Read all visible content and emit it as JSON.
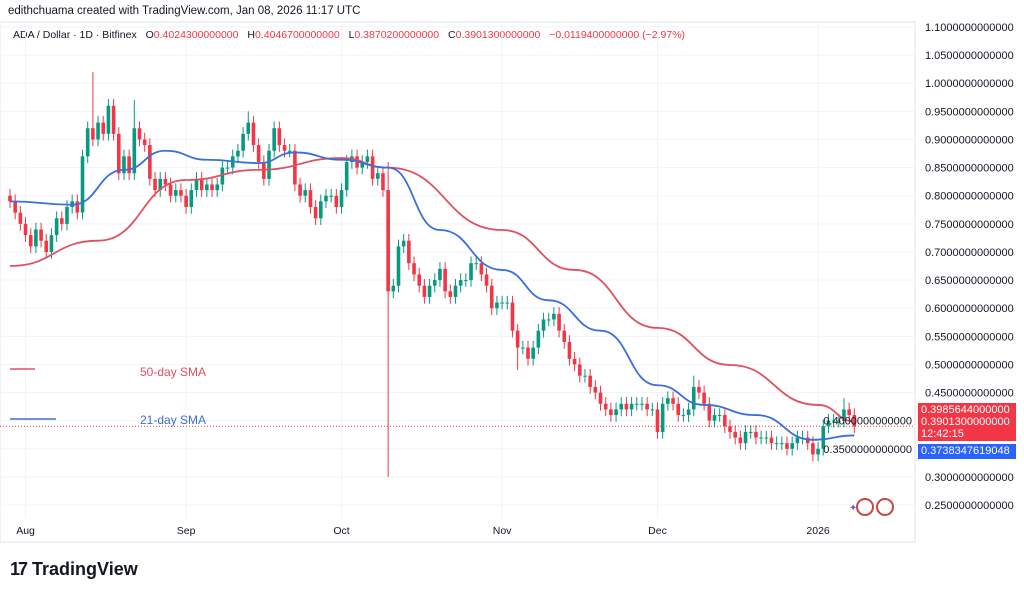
{
  "header": {
    "credit": "edithchuama created with TradingView.com, Jan 08, 2026 11:17 UTC"
  },
  "legend": {
    "symbol": "ADA / Dollar · 1D · Bitfinex",
    "o_label": "O",
    "o": "0.4024300000000",
    "h_label": "H",
    "h": "0.4046700000000",
    "l_label": "L",
    "l": "0.3870200000000",
    "c_label": "C",
    "c": "0.3901300000000",
    "change": "−0.0119400000000 (−2.97%)"
  },
  "annotations": {
    "sma50": "50-day SMA",
    "sma21": "21-day SMA"
  },
  "price_tags": {
    "sma50": "0.3985644000000",
    "last": "0.3901300000000",
    "countdown": "12:42:15",
    "sma21": "0.3738347619048"
  },
  "colors": {
    "up": "#089981",
    "down": "#f23645",
    "sma50": "#e05060",
    "sma21": "#3a6fd8",
    "tag_red": "#f23645",
    "tag_blue": "#2962ff"
  },
  "branding": {
    "logo_text": "TradingView"
  },
  "chart_data": {
    "type": "candlestick",
    "symbol": "ADA / Dollar",
    "interval": "1D",
    "start_date": "2025-07-29",
    "end_date": "2026-01-08",
    "first_open": 0.8,
    "closes": [
      0.79,
      0.77,
      0.75,
      0.73,
      0.71,
      0.74,
      0.72,
      0.7,
      0.73,
      0.76,
      0.75,
      0.78,
      0.79,
      0.77,
      0.87,
      0.92,
      0.9,
      0.93,
      0.91,
      0.96,
      0.91,
      0.84,
      0.87,
      0.84,
      0.92,
      0.9,
      0.89,
      0.83,
      0.81,
      0.83,
      0.82,
      0.8,
      0.81,
      0.8,
      0.78,
      0.81,
      0.83,
      0.81,
      0.82,
      0.81,
      0.82,
      0.85,
      0.85,
      0.87,
      0.88,
      0.91,
      0.93,
      0.89,
      0.86,
      0.83,
      0.88,
      0.92,
      0.89,
      0.88,
      0.88,
      0.82,
      0.8,
      0.81,
      0.78,
      0.76,
      0.79,
      0.8,
      0.8,
      0.78,
      0.81,
      0.86,
      0.87,
      0.85,
      0.86,
      0.87,
      0.83,
      0.84,
      0.81,
      0.63,
      0.64,
      0.71,
      0.72,
      0.68,
      0.66,
      0.64,
      0.62,
      0.64,
      0.65,
      0.67,
      0.63,
      0.62,
      0.64,
      0.65,
      0.65,
      0.68,
      0.68,
      0.66,
      0.64,
      0.6,
      0.61,
      0.61,
      0.61,
      0.56,
      0.53,
      0.53,
      0.51,
      0.53,
      0.56,
      0.58,
      0.58,
      0.59,
      0.56,
      0.54,
      0.51,
      0.5,
      0.48,
      0.48,
      0.46,
      0.45,
      0.43,
      0.42,
      0.41,
      0.42,
      0.43,
      0.42,
      0.43,
      0.43,
      0.43,
      0.42,
      0.42,
      0.38,
      0.43,
      0.44,
      0.43,
      0.41,
      0.41,
      0.42,
      0.46,
      0.45,
      0.43,
      0.4,
      0.41,
      0.41,
      0.39,
      0.38,
      0.37,
      0.36,
      0.38,
      0.38,
      0.37,
      0.37,
      0.37,
      0.36,
      0.36,
      0.36,
      0.35,
      0.36,
      0.37,
      0.37,
      0.36,
      0.34,
      0.35,
      0.39,
      0.4,
      0.4,
      0.4,
      0.42,
      0.41,
      0.39
    ],
    "notable_wicks": [
      {
        "date": "2025-08-14",
        "high": 1.02
      },
      {
        "date": "2025-08-22",
        "high": 0.97
      },
      {
        "date": "2025-09-13",
        "high": 0.95
      },
      {
        "date": "2025-10-10",
        "high": 0.86,
        "low": 0.3
      },
      {
        "date": "2025-11-04",
        "low": 0.49
      },
      {
        "date": "2025-12-08",
        "high": 0.48
      },
      {
        "date": "2026-01-06",
        "high": 0.44
      }
    ],
    "series": [
      {
        "name": "50-day SMA",
        "points": [
          [
            "2025-07-29",
            0.675
          ],
          [
            "2025-08-15",
            0.72
          ],
          [
            "2025-09-01",
            0.828
          ],
          [
            "2025-09-15",
            0.846
          ],
          [
            "2025-10-01",
            0.867
          ],
          [
            "2025-10-10",
            0.85
          ],
          [
            "2025-11-01",
            0.739
          ],
          [
            "2025-11-15",
            0.668
          ],
          [
            "2025-12-01",
            0.565
          ],
          [
            "2025-12-15",
            0.499
          ],
          [
            "2026-01-01",
            0.428
          ],
          [
            "2026-01-08",
            0.3986
          ]
        ]
      },
      {
        "name": "21-day SMA",
        "points": [
          [
            "2025-07-29",
            0.79
          ],
          [
            "2025-08-10",
            0.784
          ],
          [
            "2025-08-20",
            0.846
          ],
          [
            "2025-08-28",
            0.88
          ],
          [
            "2025-09-05",
            0.864
          ],
          [
            "2025-09-15",
            0.858
          ],
          [
            "2025-09-22",
            0.877
          ],
          [
            "2025-10-01",
            0.864
          ],
          [
            "2025-10-10",
            0.85
          ],
          [
            "2025-10-20",
            0.739
          ],
          [
            "2025-11-01",
            0.668
          ],
          [
            "2025-11-10",
            0.614
          ],
          [
            "2025-11-20",
            0.56
          ],
          [
            "2025-12-01",
            0.463
          ],
          [
            "2025-12-10",
            0.428
          ],
          [
            "2025-12-20",
            0.41
          ],
          [
            "2025-12-31",
            0.366
          ],
          [
            "2026-01-08",
            0.3738
          ]
        ]
      }
    ],
    "y_ticks": [
      "1.1000000000000",
      "1.0500000000000",
      "1.0000000000000",
      "0.9500000000000",
      "0.9000000000000",
      "0.8500000000000",
      "0.8000000000000",
      "0.7500000000000",
      "0.7000000000000",
      "0.6500000000000",
      "0.6000000000000",
      "0.5500000000000",
      "0.5000000000000",
      "0.4500000000000",
      "0.4000000000000",
      "0.3500000000000",
      "0.3000000000000",
      "0.2500000000000"
    ],
    "ylim": [
      0.25,
      1.1
    ],
    "x_ticks": [
      {
        "label": "Aug",
        "date": "2025-08-01"
      },
      {
        "label": "Sep",
        "date": "2025-09-01"
      },
      {
        "label": "Oct",
        "date": "2025-10-01"
      },
      {
        "label": "Nov",
        "date": "2025-11-01"
      },
      {
        "label": "Dec",
        "date": "2025-12-01"
      },
      {
        "label": "2026",
        "date": "2026-01-01"
      }
    ],
    "grid": true,
    "last_price": 0.39013
  }
}
